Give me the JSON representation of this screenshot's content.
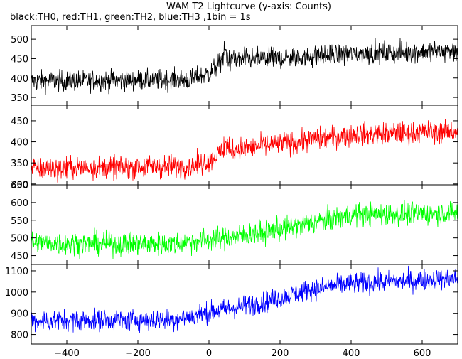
{
  "title": "WAM T2 Lightcurve (y-axis: Counts)",
  "subtitle": "black:TH0, red:TH1, green:TH2, blue:TH3 ,1bin = 1s",
  "chart_data": {
    "type": "line",
    "x_range": [
      -500,
      700
    ],
    "x_ticks": [
      -400,
      -200,
      0,
      200,
      400,
      600
    ],
    "binning_seconds": 1,
    "panels": [
      {
        "color": "#000000",
        "ylim": [
          330,
          535
        ],
        "y_ticks": [
          350,
          400,
          450,
          500
        ],
        "profile": [
          [
            -500,
            392
          ],
          [
            -50,
            396
          ],
          [
            0,
            412
          ],
          [
            40,
            445
          ],
          [
            100,
            448
          ],
          [
            250,
            453
          ],
          [
            400,
            462
          ],
          [
            700,
            470
          ]
        ],
        "noise": 19,
        "spike_at": 45,
        "spike_height": 40
      },
      {
        "color": "#ff0000",
        "ylim": [
          298,
          487
        ],
        "y_ticks": [
          300,
          350,
          400,
          450
        ],
        "profile": [
          [
            -500,
            337
          ],
          [
            -50,
            342
          ],
          [
            0,
            355
          ],
          [
            40,
            378
          ],
          [
            100,
            385
          ],
          [
            250,
            400
          ],
          [
            400,
            417
          ],
          [
            700,
            425
          ]
        ],
        "noise": 19,
        "spike_at": 45,
        "spike_height": 35
      },
      {
        "color": "#00ff00",
        "ylim": [
          425,
          650
        ],
        "y_ticks": [
          450,
          500,
          550,
          600,
          650
        ],
        "profile": [
          [
            -500,
            485
          ],
          [
            -100,
            483
          ],
          [
            0,
            495
          ],
          [
            150,
            515
          ],
          [
            280,
            540
          ],
          [
            400,
            565
          ],
          [
            700,
            572
          ]
        ],
        "noise": 23,
        "spike_at": 45,
        "spike_height": 0
      },
      {
        "color": "#0000ff",
        "ylim": [
          755,
          1130
        ],
        "y_ticks": [
          800,
          900,
          1000,
          1100
        ],
        "profile": [
          [
            -500,
            865
          ],
          [
            -100,
            870
          ],
          [
            0,
            905
          ],
          [
            150,
            950
          ],
          [
            280,
            1010
          ],
          [
            400,
            1040
          ],
          [
            700,
            1065
          ]
        ],
        "noise": 35,
        "spike_at": 45,
        "spike_height": 0
      }
    ]
  }
}
